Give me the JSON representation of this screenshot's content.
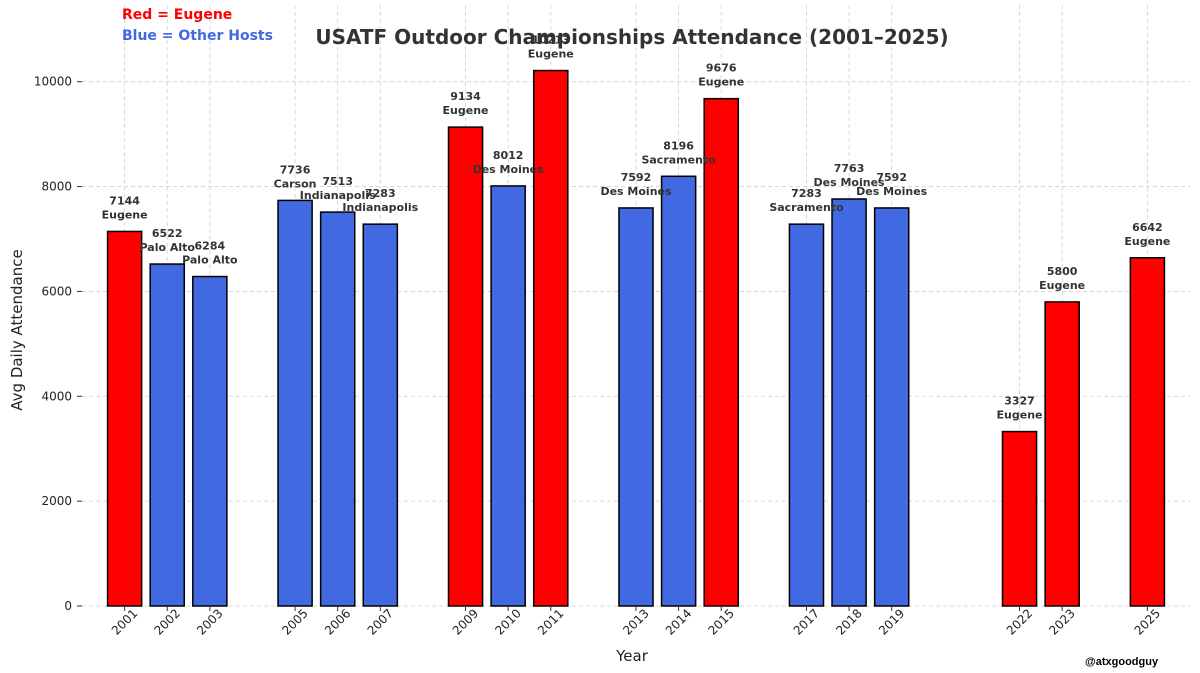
{
  "legend": {
    "red_label": "Red = Eugene",
    "blue_label": "Blue = Other Hosts",
    "red_color": "#ff0000",
    "blue_color": "#4169e1"
  },
  "credit": "@atxgoodguy",
  "chart_data": {
    "type": "bar",
    "title": "USATF Outdoor Championships Attendance (2001–2025)",
    "xlabel": "Year",
    "ylabel": "Avg Daily Attendance",
    "ylim": [
      0,
      10700
    ],
    "xlim": [
      2000,
      2026
    ],
    "yticks": [
      0,
      2000,
      4000,
      6000,
      8000,
      10000
    ],
    "grid": true,
    "categories": [
      "2001",
      "2002",
      "2003",
      "2005",
      "2006",
      "2007",
      "2009",
      "2010",
      "2011",
      "2013",
      "2014",
      "2015",
      "2017",
      "2018",
      "2019",
      "2022",
      "2023",
      "2025"
    ],
    "values": [
      7144,
      6522,
      6284,
      7736,
      7513,
      7283,
      9134,
      8012,
      10213,
      7592,
      8196,
      9676,
      7283,
      7763,
      7592,
      3327,
      5800,
      6642
    ],
    "hosts": [
      "Eugene",
      "Palo Alto",
      "Palo Alto",
      "Carson",
      "Indianapolis",
      "Indianapolis",
      "Eugene",
      "Des Moines",
      "Eugene",
      "Des Moines",
      "Sacramento",
      "Eugene",
      "Sacramento",
      "Des Moines",
      "Des Moines",
      "Eugene",
      "Eugene",
      "Eugene"
    ]
  }
}
